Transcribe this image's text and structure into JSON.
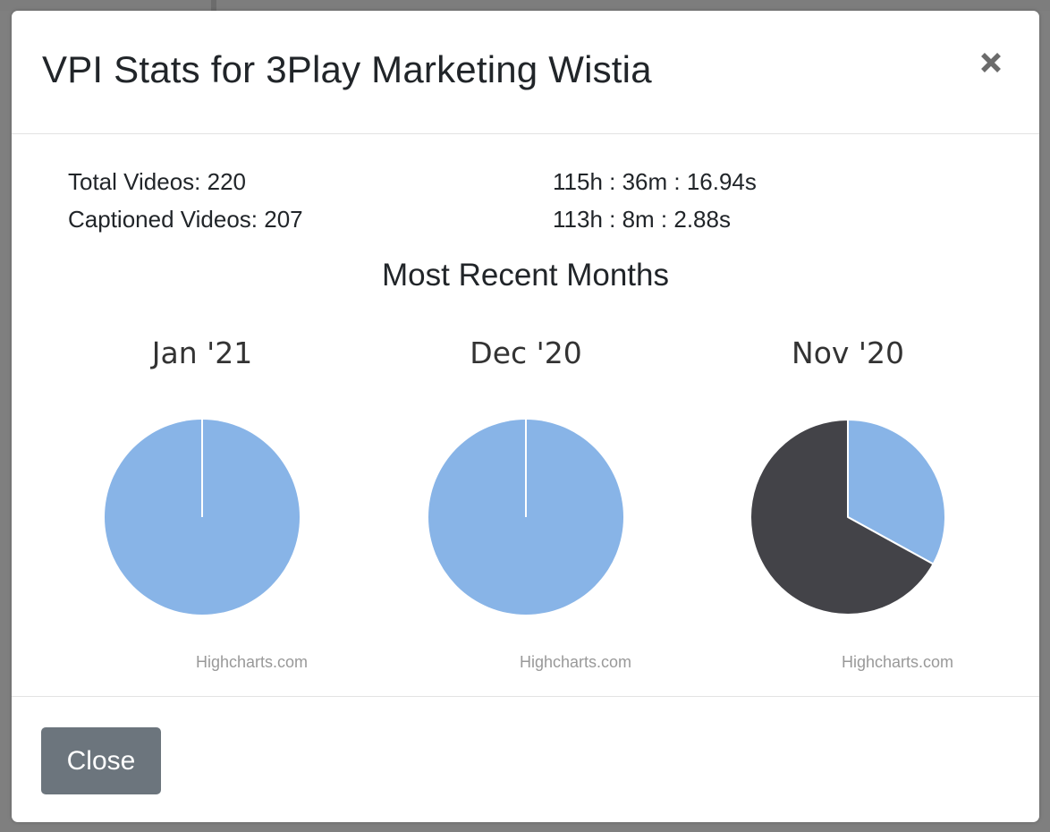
{
  "modal": {
    "title": "VPI Stats for 3Play Marketing Wistia",
    "close_icon": "close-icon"
  },
  "stats": {
    "total_videos": "Total Videos: 220",
    "captioned_videos": "Captioned Videos: 207",
    "total_duration": "115h : 36m : 16.94s",
    "captioned_duration": "113h : 8m : 2.88s"
  },
  "section_title": "Most Recent Months",
  "colors": {
    "slice_light": "#88b4e7",
    "slice_dark": "#434348",
    "close_button": "#6c757d"
  },
  "chart_data": [
    {
      "type": "pie",
      "title": "Jan '21",
      "credits": "Highcharts.com",
      "values": [
        1,
        0
      ]
    },
    {
      "type": "pie",
      "title": "Dec '20",
      "credits": "Highcharts.com",
      "values": [
        1,
        0
      ]
    },
    {
      "type": "pie",
      "title": "Nov '20",
      "credits": "Highcharts.com",
      "values": [
        0.33,
        0.67
      ]
    }
  ],
  "footer": {
    "close_label": "Close"
  }
}
